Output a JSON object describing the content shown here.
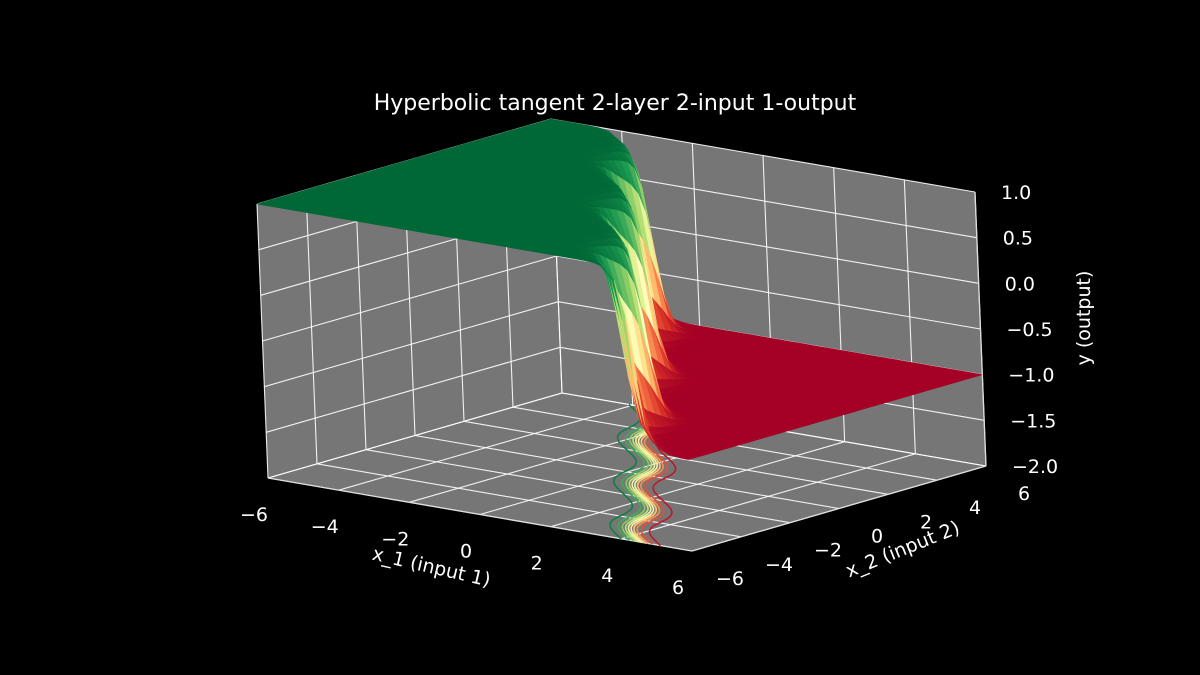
{
  "chart_data": {
    "type": "surface3d",
    "title": "Hyperbolic tangent 2-layer 2-input 1-output",
    "xlabel": "x_1 (input 1)",
    "ylabel": "x_2 (input 2)",
    "zlabel": "y (output)",
    "xlim": [
      -6,
      6
    ],
    "ylim": [
      -6,
      6
    ],
    "zlim": [
      -2.0,
      1.0
    ],
    "x_ticks": [
      "−6",
      "−4",
      "−2",
      "0",
      "2",
      "4",
      "6"
    ],
    "y_ticks": [
      "−6",
      "−4",
      "−2",
      "0",
      "2",
      "4",
      "6"
    ],
    "z_ticks": [
      "−2.0",
      "−1.5",
      "−1.0",
      "−0.5",
      "0.0",
      "0.5",
      "1.0"
    ],
    "z_range": [
      -1,
      1
    ],
    "colormap": "RdYlGn",
    "grid": true,
    "pane_color": "#767676",
    "background": "#000000",
    "contour_projection": "floor"
  }
}
